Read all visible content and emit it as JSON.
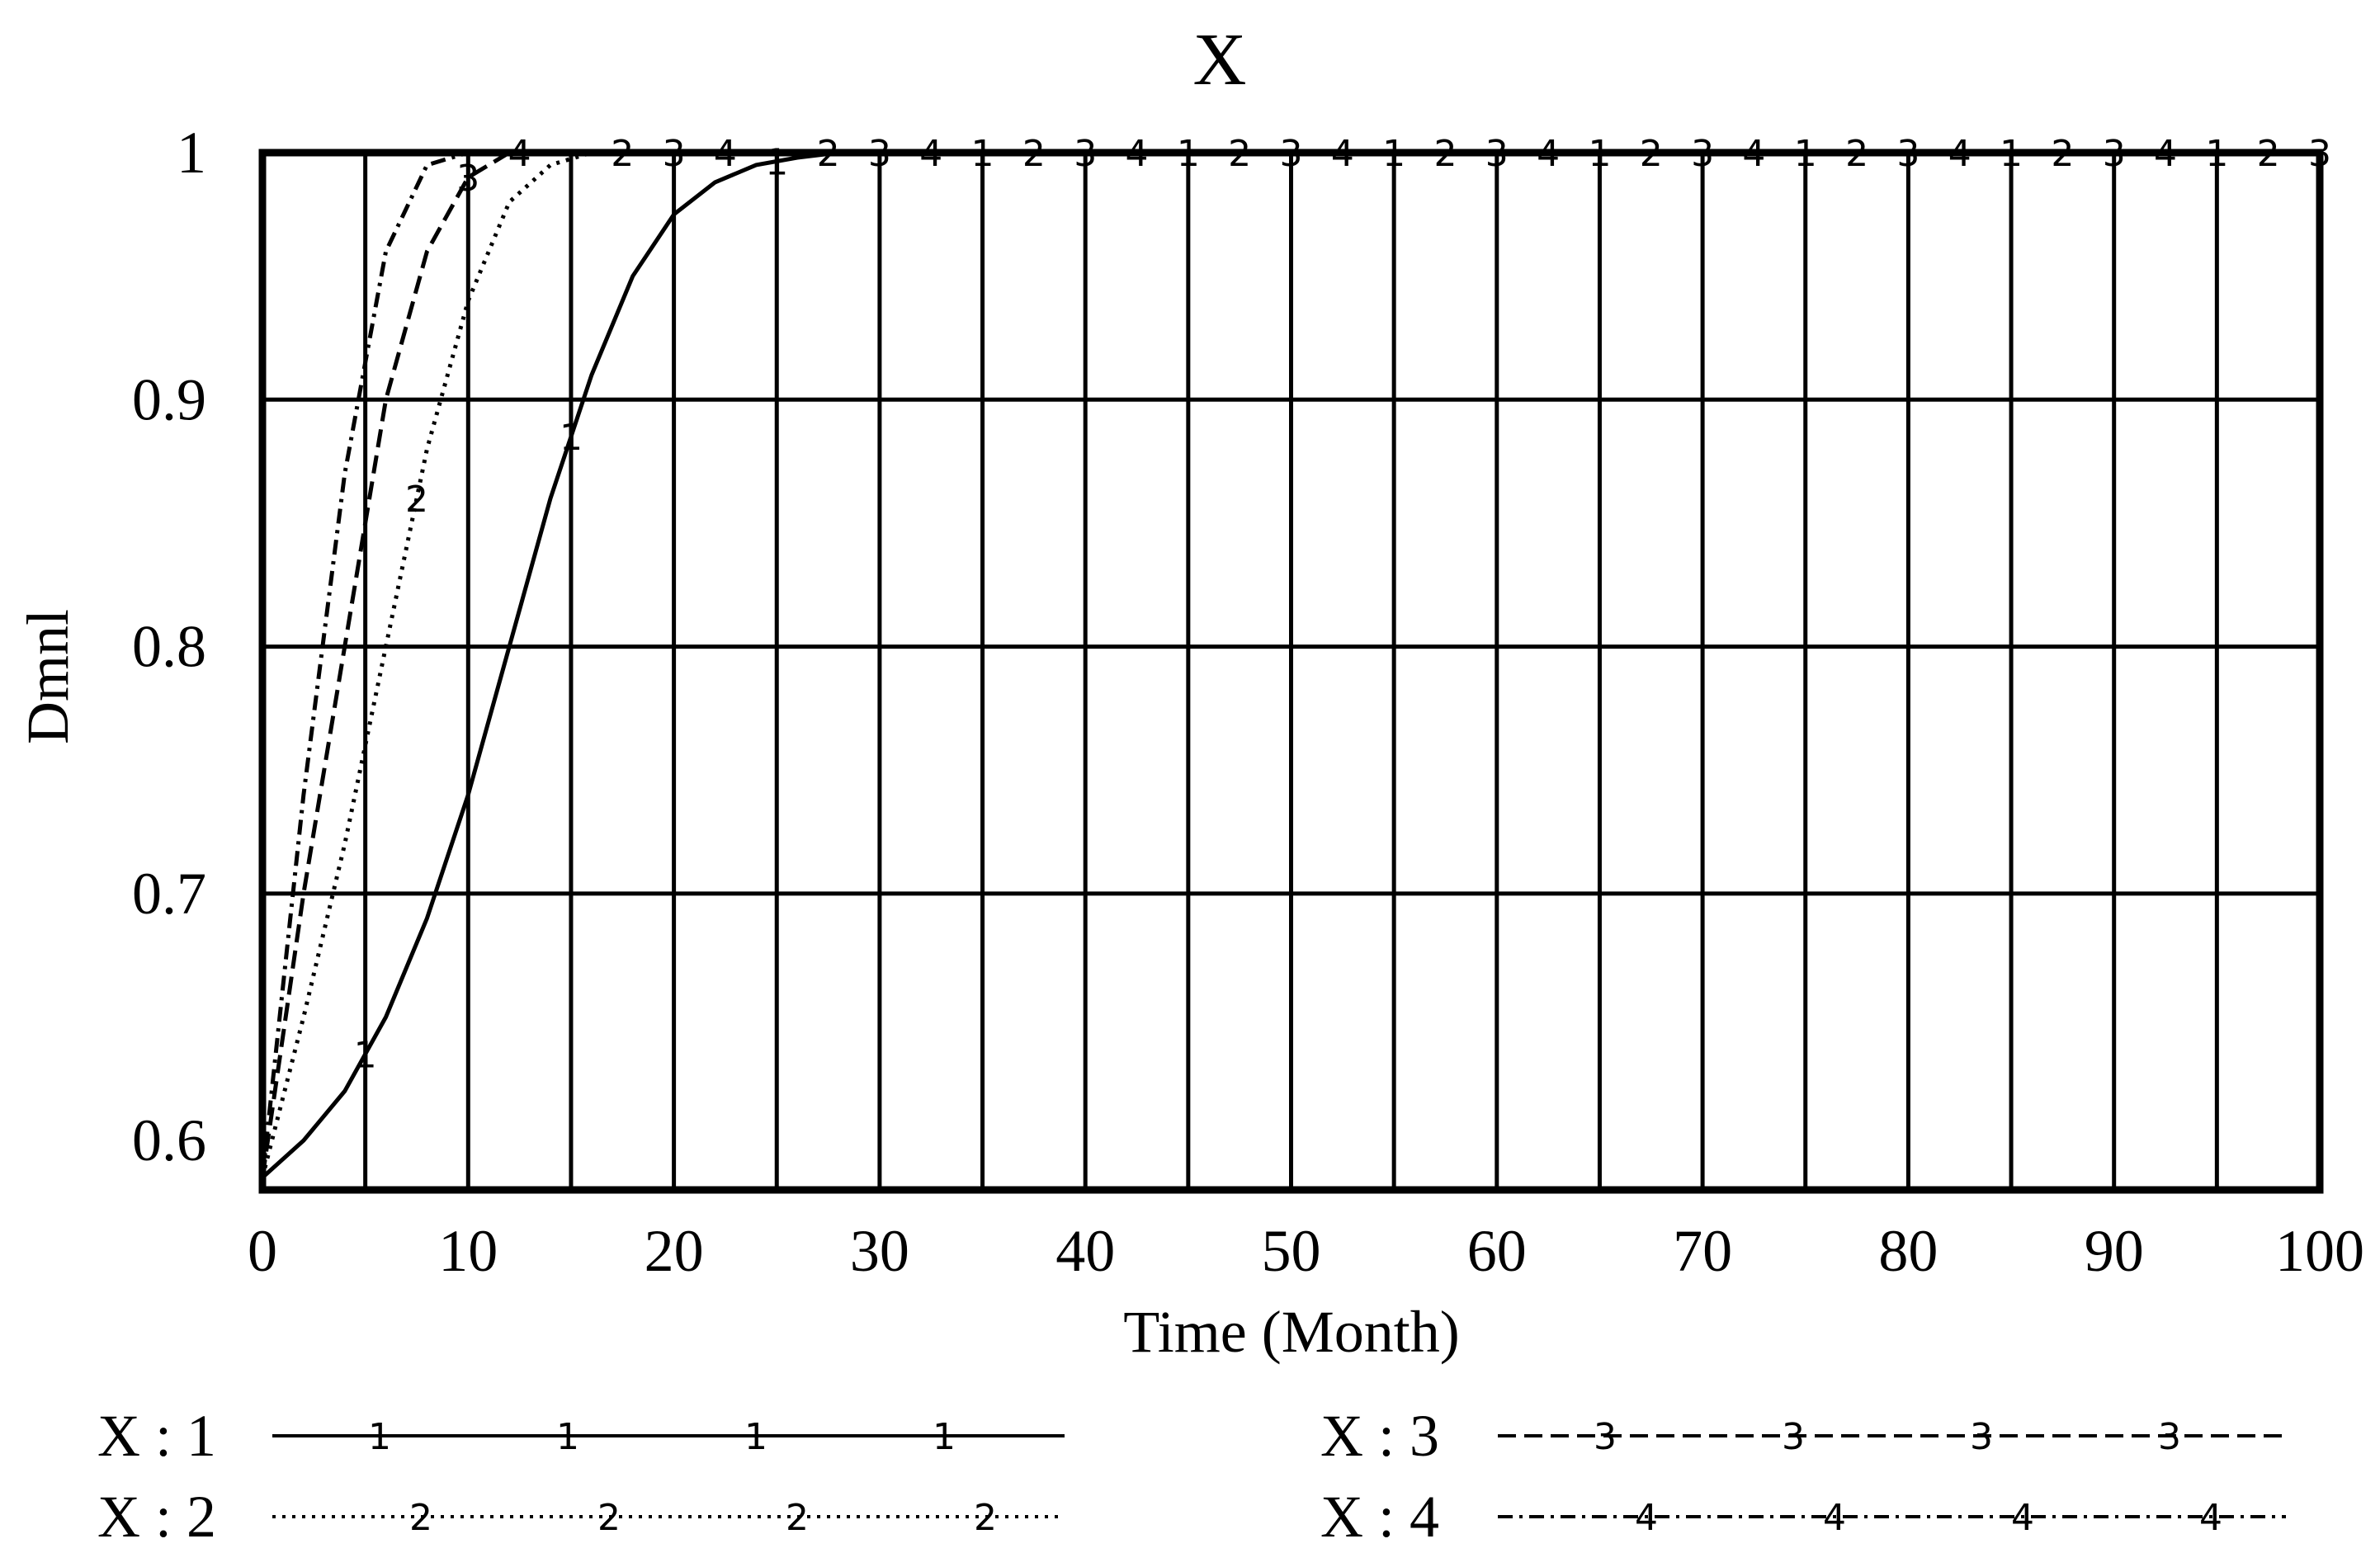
{
  "chart_data": {
    "type": "line",
    "title": "X",
    "xlabel": "Time (Month)",
    "ylabel": "Dmnl",
    "xlim": [
      0,
      100
    ],
    "ylim": [
      0.58,
      1.0
    ],
    "grid": true,
    "x_ticks": [
      "0",
      "10",
      "20",
      "30",
      "40",
      "50",
      "60",
      "70",
      "80",
      "90",
      "100"
    ],
    "y_ticks": [
      "0.6",
      "0.7",
      "0.8",
      "0.9",
      "1"
    ],
    "legend_position": "bottom",
    "series": [
      {
        "name": "X : 1",
        "marker": "1",
        "style": "solid",
        "x": [
          0,
          2,
          4,
          6,
          8,
          10,
          12,
          14,
          16,
          18,
          20,
          22,
          24,
          26,
          28,
          30,
          40,
          50,
          60,
          70,
          80,
          90,
          100
        ],
        "y": [
          0.585,
          0.6,
          0.62,
          0.65,
          0.69,
          0.74,
          0.8,
          0.86,
          0.91,
          0.95,
          0.975,
          0.988,
          0.995,
          0.998,
          1.0,
          1.0,
          1.0,
          1.0,
          1.0,
          1.0,
          1.0,
          1.0,
          1.0
        ]
      },
      {
        "name": "X : 2",
        "marker": "2",
        "style": "dotted",
        "x": [
          0,
          2,
          4,
          6,
          8,
          10,
          12,
          14,
          16,
          20,
          30,
          40,
          50,
          60,
          70,
          80,
          90,
          100
        ],
        "y": [
          0.585,
          0.65,
          0.72,
          0.8,
          0.88,
          0.94,
          0.98,
          0.995,
          1.0,
          1.0,
          1.0,
          1.0,
          1.0,
          1.0,
          1.0,
          1.0,
          1.0,
          1.0
        ]
      },
      {
        "name": "X : 3",
        "marker": "3",
        "style": "dashed",
        "x": [
          0,
          2,
          4,
          6,
          8,
          10,
          12,
          20,
          30,
          40,
          50,
          60,
          70,
          80,
          90,
          100
        ],
        "y": [
          0.585,
          0.7,
          0.8,
          0.9,
          0.96,
          0.99,
          1.0,
          1.0,
          1.0,
          1.0,
          1.0,
          1.0,
          1.0,
          1.0,
          1.0,
          1.0
        ]
      },
      {
        "name": "X : 4",
        "marker": "4",
        "style": "dashdot",
        "x": [
          0,
          2,
          4,
          6,
          8,
          10,
          20,
          30,
          40,
          50,
          60,
          70,
          80,
          90,
          100
        ],
        "y": [
          0.585,
          0.74,
          0.87,
          0.96,
          0.995,
          1.0,
          1.0,
          1.0,
          1.0,
          1.0,
          1.0,
          1.0,
          1.0,
          1.0,
          1.0
        ]
      }
    ]
  }
}
